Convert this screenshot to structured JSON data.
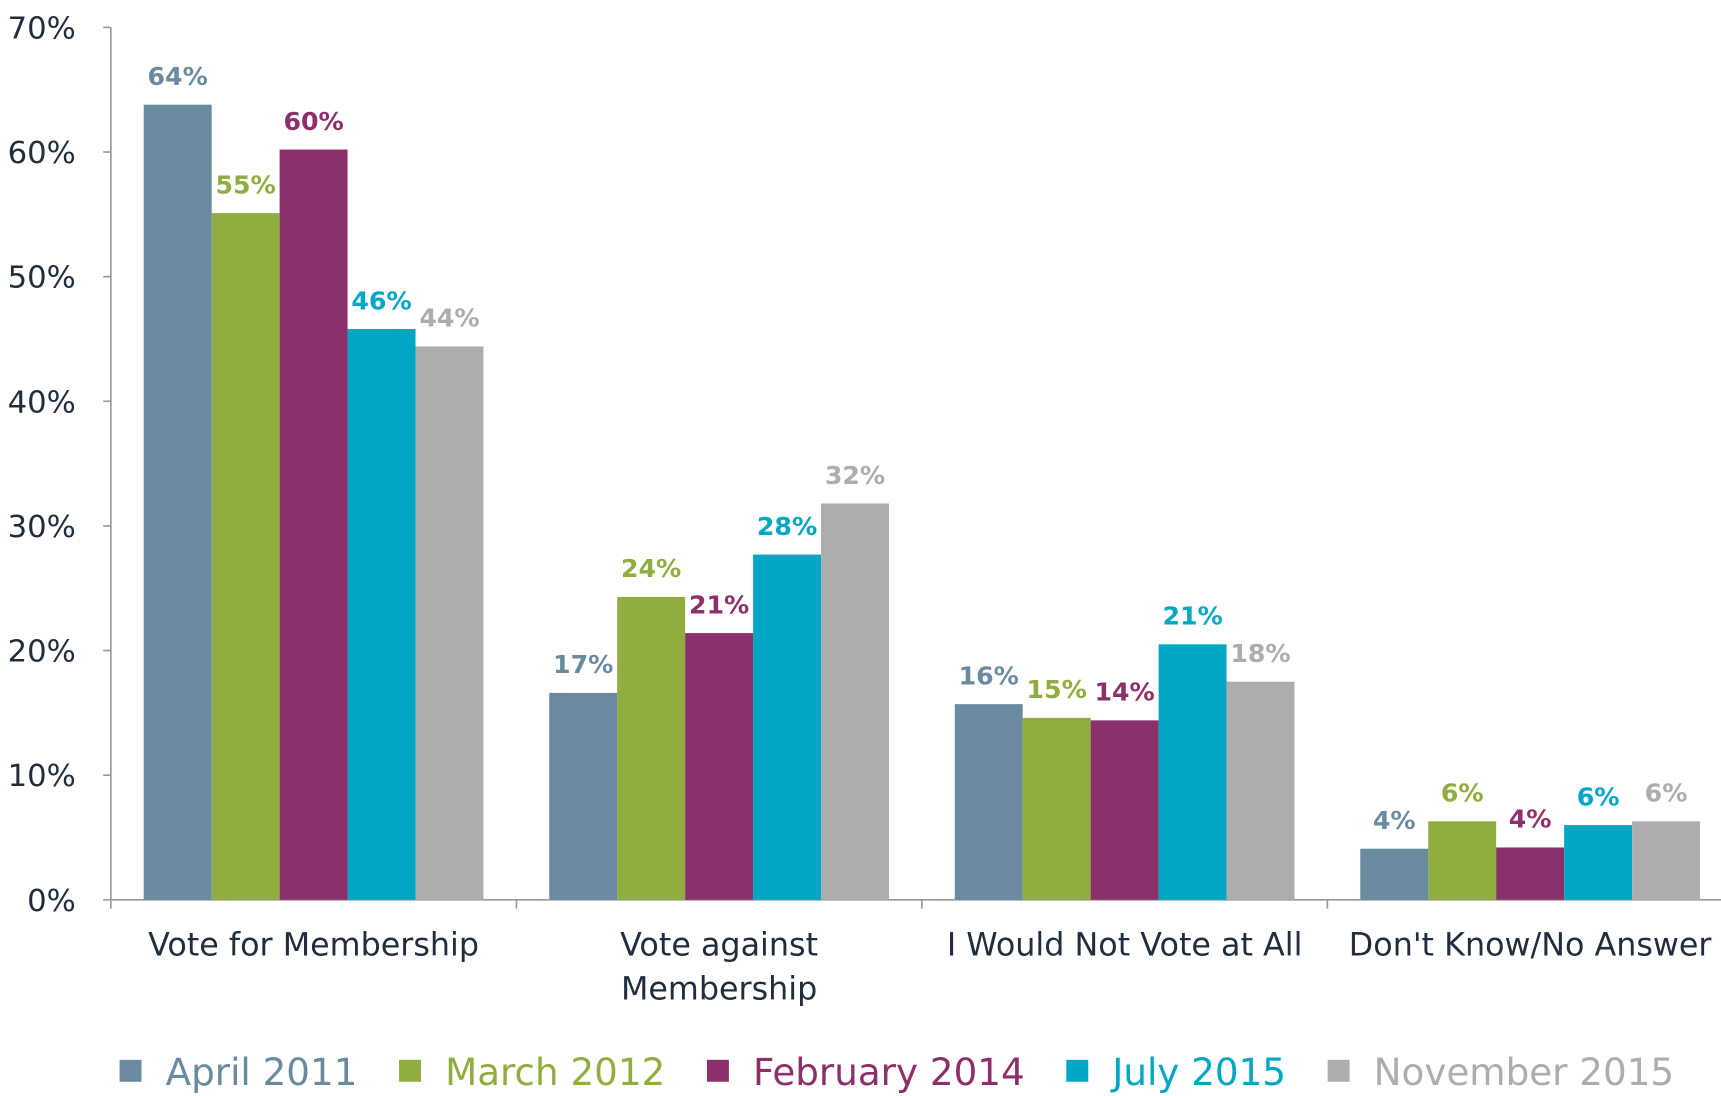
{
  "chart_data": {
    "type": "bar",
    "categories": [
      "Vote for Membership",
      "Vote against\nMembership",
      "I Would Not Vote at All",
      "Don't Know/No Answer"
    ],
    "series": [
      {
        "name": "April 2011",
        "color": "#6a8aa0",
        "values": [
          63.8,
          16.6,
          15.7,
          4.1
        ],
        "value_labels": [
          "64%",
          "17%",
          "16%",
          "4%"
        ]
      },
      {
        "name": "March 2012",
        "color": "#8fae3f",
        "values": [
          55.1,
          24.3,
          14.6,
          6.3
        ],
        "value_labels": [
          "55%",
          "24%",
          "15%",
          "6%"
        ]
      },
      {
        "name": "February 2014",
        "color": "#8b306a",
        "values": [
          60.2,
          21.4,
          14.4,
          4.2
        ],
        "value_labels": [
          "60%",
          "21%",
          "14%",
          "4%"
        ]
      },
      {
        "name": "July 2015",
        "color": "#00a7c2",
        "values": [
          45.8,
          27.7,
          20.5,
          6.0
        ],
        "value_labels": [
          "46%",
          "28%",
          "21%",
          "6%"
        ]
      },
      {
        "name": "November 2015",
        "color": "#adadaf",
        "values": [
          44.4,
          31.8,
          17.5,
          6.3
        ],
        "value_labels": [
          "44%",
          "32%",
          "18%",
          "6%"
        ]
      }
    ],
    "ylim": [
      0,
      70
    ],
    "yticks": [
      {
        "value": 0,
        "label": "0%"
      },
      {
        "value": 10,
        "label": "10%"
      },
      {
        "value": 20,
        "label": "20%"
      },
      {
        "value": 30,
        "label": "30%"
      },
      {
        "value": 40,
        "label": "40%"
      },
      {
        "value": 50,
        "label": "50%"
      },
      {
        "value": 60,
        "label": "60%"
      },
      {
        "value": 70,
        "label": "70%"
      }
    ]
  }
}
